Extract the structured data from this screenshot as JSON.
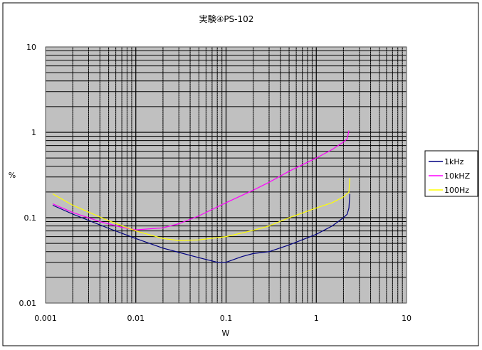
{
  "chart_data": {
    "type": "line",
    "title": "実験④PS-102",
    "xlabel": "W",
    "ylabel": "%",
    "x_scale": "log",
    "y_scale": "log",
    "xlim": [
      0.001,
      10
    ],
    "ylim": [
      0.01,
      10
    ],
    "grid": true,
    "legend_position": "right",
    "x_tick_labels": [
      "0.001",
      "0.01",
      "0.1",
      "1",
      "10"
    ],
    "y_tick_labels": [
      "0.01",
      "0.1",
      "1",
      "10"
    ],
    "series": [
      {
        "name": "1kHz",
        "color": "#000080",
        "points": [
          [
            0.0012,
            0.14
          ],
          [
            0.002,
            0.11
          ],
          [
            0.005,
            0.075
          ],
          [
            0.01,
            0.057
          ],
          [
            0.02,
            0.044
          ],
          [
            0.05,
            0.034
          ],
          [
            0.08,
            0.03
          ],
          [
            0.1,
            0.03
          ],
          [
            0.15,
            0.035
          ],
          [
            0.2,
            0.038
          ],
          [
            0.3,
            0.04
          ],
          [
            0.5,
            0.048
          ],
          [
            1,
            0.064
          ],
          [
            1.5,
            0.08
          ],
          [
            2,
            0.1
          ],
          [
            2.2,
            0.11
          ],
          [
            2.3,
            0.13
          ],
          [
            2.35,
            0.19
          ]
        ]
      },
      {
        "name": "10kHZ",
        "color": "#ff00ff",
        "points": [
          [
            0.0012,
            0.145
          ],
          [
            0.002,
            0.115
          ],
          [
            0.004,
            0.09
          ],
          [
            0.007,
            0.077
          ],
          [
            0.01,
            0.072
          ],
          [
            0.02,
            0.076
          ],
          [
            0.03,
            0.085
          ],
          [
            0.05,
            0.105
          ],
          [
            0.1,
            0.15
          ],
          [
            0.2,
            0.21
          ],
          [
            0.3,
            0.26
          ],
          [
            0.5,
            0.35
          ],
          [
            1,
            0.5
          ],
          [
            1.5,
            0.63
          ],
          [
            2,
            0.77
          ],
          [
            2.2,
            0.84
          ],
          [
            2.3,
            1.05
          ]
        ]
      },
      {
        "name": "100Hz",
        "color": "#ffff00",
        "points": [
          [
            0.0012,
            0.19
          ],
          [
            0.002,
            0.14
          ],
          [
            0.005,
            0.092
          ],
          [
            0.01,
            0.07
          ],
          [
            0.02,
            0.057
          ],
          [
            0.03,
            0.054
          ],
          [
            0.05,
            0.055
          ],
          [
            0.1,
            0.06
          ],
          [
            0.2,
            0.071
          ],
          [
            0.3,
            0.08
          ],
          [
            0.5,
            0.1
          ],
          [
            1,
            0.13
          ],
          [
            1.5,
            0.15
          ],
          [
            2,
            0.175
          ],
          [
            2.3,
            0.2
          ],
          [
            2.35,
            0.29
          ]
        ]
      }
    ]
  }
}
